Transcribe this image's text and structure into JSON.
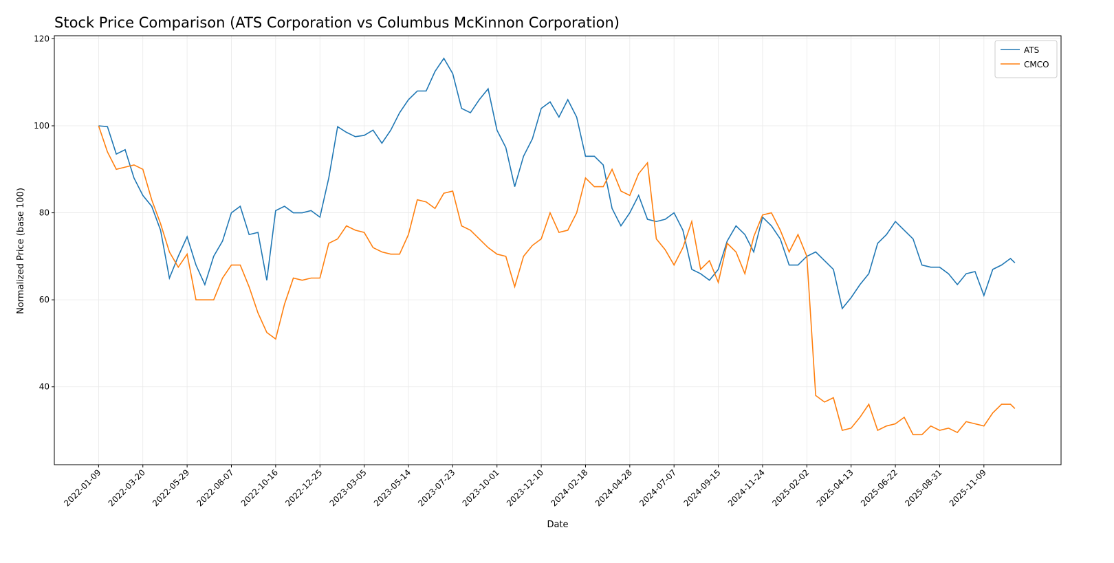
{
  "chart_data": {
    "type": "line",
    "title": "Stock Price Comparison (ATS Corporation vs Columbus McKinnon Corporation)",
    "x_label": "Date",
    "y_label": "Normalized Price (base 100)",
    "x": [
      "2022-01-09",
      "2022-01-23",
      "2022-02-06",
      "2022-02-20",
      "2022-03-06",
      "2022-03-20",
      "2022-04-03",
      "2022-04-17",
      "2022-05-01",
      "2022-05-15",
      "2022-05-29",
      "2022-06-12",
      "2022-06-26",
      "2022-07-10",
      "2022-07-24",
      "2022-08-07",
      "2022-08-21",
      "2022-09-04",
      "2022-09-18",
      "2022-10-02",
      "2022-10-16",
      "2022-10-30",
      "2022-11-13",
      "2022-11-27",
      "2022-12-11",
      "2022-12-25",
      "2023-01-08",
      "2023-01-22",
      "2023-02-05",
      "2023-02-19",
      "2023-03-05",
      "2023-03-19",
      "2023-04-02",
      "2023-04-16",
      "2023-04-30",
      "2023-05-14",
      "2023-05-28",
      "2023-06-11",
      "2023-06-25",
      "2023-07-09",
      "2023-07-23",
      "2023-08-06",
      "2023-08-20",
      "2023-09-03",
      "2023-09-17",
      "2023-10-01",
      "2023-10-15",
      "2023-10-29",
      "2023-11-12",
      "2023-11-26",
      "2023-12-10",
      "2023-12-24",
      "2024-01-07",
      "2024-01-21",
      "2024-02-04",
      "2024-02-18",
      "2024-03-03",
      "2024-03-17",
      "2024-03-31",
      "2024-04-14",
      "2024-04-28",
      "2024-05-12",
      "2024-05-26",
      "2024-06-09",
      "2024-06-23",
      "2024-07-07",
      "2024-07-21",
      "2024-08-04",
      "2024-08-18",
      "2024-09-01",
      "2024-09-15",
      "2024-09-29",
      "2024-10-13",
      "2024-10-27",
      "2024-11-10",
      "2024-11-24",
      "2024-12-08",
      "2024-12-22",
      "2025-01-05",
      "2025-01-19",
      "2025-02-02",
      "2025-02-16",
      "2025-03-02",
      "2025-03-16",
      "2025-03-30",
      "2025-04-13",
      "2025-04-27",
      "2025-05-11",
      "2025-05-25",
      "2025-06-08",
      "2025-06-22",
      "2025-07-06",
      "2025-07-20",
      "2025-08-03",
      "2025-08-17",
      "2025-08-31",
      "2025-09-14",
      "2025-09-28",
      "2025-10-12",
      "2025-10-26",
      "2025-11-09",
      "2025-11-23",
      "2025-12-07",
      "2025-12-21",
      "2025-12-28"
    ],
    "series": [
      {
        "name": "ATS",
        "color": "#1f77b4",
        "values": [
          100,
          99.8,
          93.5,
          94.5,
          88,
          84,
          81.5,
          76,
          65,
          70,
          74.5,
          68,
          63.5,
          70,
          73.5,
          80,
          81.5,
          75,
          75.5,
          64.5,
          80.5,
          81.5,
          80,
          80,
          80.5,
          79,
          88,
          99.8,
          98.5,
          97.5,
          97.8,
          99,
          96,
          99,
          103,
          106,
          108,
          108,
          112.5,
          115.5,
          112,
          104,
          103,
          106,
          108.5,
          99,
          95,
          86,
          93,
          97,
          104,
          105.5,
          102,
          106,
          102,
          93,
          93,
          91,
          81,
          77,
          80,
          84,
          78.5,
          78,
          78.5,
          80,
          76,
          67,
          66,
          64.5,
          67,
          73.5,
          77,
          75,
          71,
          79,
          77,
          74,
          68,
          68,
          70,
          71,
          69,
          67,
          58,
          60.5,
          63.5,
          66,
          73,
          75,
          78,
          76,
          74,
          68,
          67.5,
          67.5,
          66,
          63.5,
          66,
          66.5,
          61,
          67,
          68,
          69.5,
          68.5
        ]
      },
      {
        "name": "CMCO",
        "color": "#ff7f0e",
        "values": [
          100,
          94,
          90,
          90.5,
          91,
          90,
          83,
          77.5,
          71,
          67.5,
          70.5,
          60,
          60,
          60,
          65,
          68,
          68,
          63,
          57,
          52.5,
          51,
          59,
          65,
          64.5,
          65,
          65,
          73,
          74,
          77,
          76,
          75.5,
          72,
          71,
          70.5,
          70.5,
          75,
          83,
          82.5,
          81,
          84.5,
          85,
          77,
          76,
          74,
          72,
          70.5,
          70,
          63,
          70,
          72.5,
          74,
          80,
          75.5,
          76,
          80,
          88,
          86,
          86,
          90,
          85,
          84,
          89,
          91.5,
          74,
          71.5,
          68,
          72,
          78,
          67,
          69,
          64,
          73,
          71,
          66,
          74.5,
          79.5,
          80,
          76,
          71,
          75,
          70,
          38,
          36.5,
          37.5,
          30,
          30.5,
          33,
          36,
          30,
          31,
          31.5,
          33,
          29,
          29,
          31,
          30,
          30.5,
          29.5,
          32,
          31.5,
          31,
          34,
          36,
          36,
          35
        ]
      }
    ],
    "xlim": [
      "2021-10-31",
      "2026-03-11"
    ],
    "xticks": [
      "2022-01-09",
      "2022-03-20",
      "2022-05-29",
      "2022-08-07",
      "2022-10-16",
      "2022-12-25",
      "2023-03-05",
      "2023-05-14",
      "2023-07-23",
      "2023-10-01",
      "2023-12-10",
      "2024-02-18",
      "2024-04-28",
      "2024-07-07",
      "2024-09-15",
      "2024-11-24",
      "2025-02-02",
      "2025-04-13",
      "2025-06-22",
      "2025-08-31",
      "2025-11-09"
    ],
    "ylim": [
      22.1,
      120.7
    ],
    "yticks": [
      40,
      60,
      80,
      100,
      120
    ],
    "grid": true,
    "legend": "upper-right"
  }
}
